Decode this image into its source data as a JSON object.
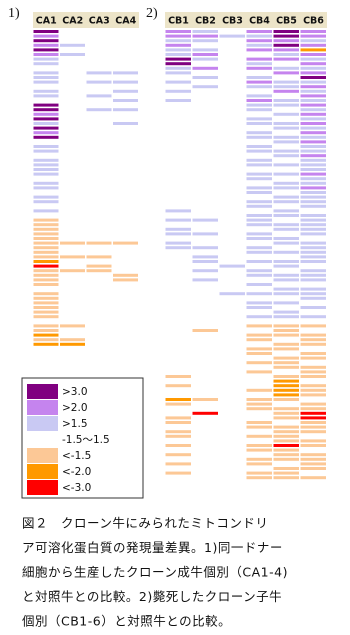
{
  "panels": [
    {
      "label": "1)",
      "columns": [
        "CA1",
        "CA2",
        "CA3",
        "CA4"
      ],
      "rows": [
        [
          0,
          3,
          3,
          3
        ],
        [
          1,
          3,
          3,
          3
        ],
        [
          0,
          3,
          3,
          3
        ],
        [
          1,
          2,
          3,
          3
        ],
        [
          0,
          3,
          3,
          3
        ],
        [
          1,
          2,
          3,
          3
        ],
        [
          2,
          3,
          3,
          3
        ],
        [
          2,
          3,
          3,
          3
        ],
        [
          3,
          3,
          3,
          3
        ],
        [
          2,
          3,
          2,
          2
        ],
        [
          2,
          3,
          3,
          3
        ],
        [
          2,
          3,
          2,
          2
        ],
        [
          3,
          3,
          3,
          3
        ],
        [
          2,
          3,
          3,
          2
        ],
        [
          2,
          3,
          2,
          3
        ],
        [
          3,
          3,
          3,
          2
        ],
        [
          0,
          3,
          3,
          3
        ],
        [
          0,
          3,
          2,
          2
        ],
        [
          1,
          3,
          3,
          3
        ],
        [
          0,
          3,
          3,
          3
        ],
        [
          2,
          3,
          3,
          2
        ],
        [
          0,
          3,
          3,
          3
        ],
        [
          1,
          3,
          3,
          3
        ],
        [
          0,
          3,
          3,
          3
        ],
        [
          3,
          3,
          3,
          3
        ],
        [
          2,
          3,
          3,
          3
        ],
        [
          2,
          3,
          3,
          3
        ],
        [
          3,
          3,
          3,
          3
        ],
        [
          2,
          3,
          3,
          3
        ],
        [
          2,
          3,
          3,
          3
        ],
        [
          2,
          3,
          3,
          3
        ],
        [
          2,
          3,
          3,
          3
        ],
        [
          3,
          3,
          3,
          3
        ],
        [
          2,
          3,
          3,
          3
        ],
        [
          2,
          3,
          3,
          3
        ],
        [
          3,
          3,
          3,
          3
        ],
        [
          2,
          3,
          3,
          3
        ],
        [
          2,
          3,
          3,
          3
        ],
        [
          3,
          3,
          3,
          3
        ],
        [
          2,
          3,
          3,
          3
        ],
        [
          3,
          3,
          3,
          3
        ],
        [
          4,
          3,
          3,
          3
        ],
        [
          4,
          3,
          3,
          3
        ],
        [
          4,
          3,
          3,
          3
        ],
        [
          4,
          3,
          3,
          3
        ],
        [
          4,
          3,
          3,
          3
        ],
        [
          4,
          4,
          4,
          4
        ],
        [
          4,
          3,
          3,
          3
        ],
        [
          4,
          3,
          3,
          3
        ],
        [
          4,
          4,
          4,
          3
        ],
        [
          5,
          3,
          3,
          3
        ],
        [
          6,
          3,
          4,
          3
        ],
        [
          4,
          4,
          4,
          3
        ],
        [
          4,
          3,
          3,
          4
        ],
        [
          4,
          3,
          3,
          4
        ],
        [
          4,
          3,
          3,
          3
        ],
        [
          3,
          3,
          3,
          3
        ],
        [
          4,
          3,
          3,
          3
        ],
        [
          4,
          3,
          3,
          3
        ],
        [
          4,
          3,
          3,
          3
        ],
        [
          4,
          3,
          3,
          3
        ],
        [
          4,
          3,
          3,
          3
        ],
        [
          4,
          3,
          3,
          3
        ],
        [
          3,
          3,
          3,
          3
        ],
        [
          4,
          4,
          3,
          3
        ],
        [
          4,
          3,
          3,
          3
        ],
        [
          5,
          3,
          3,
          3
        ],
        [
          4,
          4,
          3,
          3
        ],
        [
          5,
          5,
          3,
          3
        ]
      ]
    },
    {
      "label": "2)",
      "columns": [
        "CB1",
        "CB2",
        "CB3",
        "CB4",
        "CB5",
        "CB6"
      ],
      "rows": [
        [
          1,
          2,
          3,
          1,
          0,
          1
        ],
        [
          1,
          1,
          2,
          2,
          0,
          1
        ],
        [
          2,
          2,
          3,
          1,
          1,
          2
        ],
        [
          1,
          3,
          3,
          2,
          0,
          1
        ],
        [
          2,
          2,
          3,
          1,
          1,
          5
        ],
        [
          2,
          1,
          3,
          3,
          2,
          1
        ],
        [
          0,
          2,
          3,
          1,
          1,
          2
        ],
        [
          0,
          3,
          3,
          2,
          3,
          1
        ],
        [
          2,
          1,
          3,
          1,
          2,
          2
        ],
        [
          2,
          3,
          3,
          3,
          1,
          1
        ],
        [
          3,
          2,
          3,
          2,
          3,
          0
        ],
        [
          2,
          3,
          3,
          1,
          2,
          2
        ],
        [
          3,
          2,
          3,
          2,
          2,
          1
        ],
        [
          2,
          3,
          3,
          3,
          1,
          2
        ],
        [
          3,
          3,
          3,
          2,
          3,
          1
        ],
        [
          2,
          3,
          3,
          1,
          2,
          2
        ],
        [
          3,
          3,
          3,
          2,
          2,
          1
        ],
        [
          3,
          3,
          3,
          2,
          3,
          2
        ],
        [
          3,
          3,
          3,
          3,
          2,
          1
        ],
        [
          3,
          3,
          3,
          2,
          3,
          2
        ],
        [
          3,
          3,
          3,
          2,
          2,
          1
        ],
        [
          3,
          3,
          3,
          3,
          2,
          2
        ],
        [
          3,
          3,
          3,
          2,
          3,
          1
        ],
        [
          3,
          3,
          3,
          2,
          2,
          2
        ],
        [
          3,
          3,
          3,
          3,
          2,
          1
        ],
        [
          3,
          3,
          3,
          2,
          3,
          2
        ],
        [
          3,
          3,
          3,
          2,
          2,
          2
        ],
        [
          3,
          3,
          3,
          3,
          2,
          1
        ],
        [
          3,
          3,
          3,
          2,
          3,
          2
        ],
        [
          3,
          3,
          3,
          2,
          2,
          2
        ],
        [
          3,
          3,
          3,
          3,
          3,
          2
        ],
        [
          3,
          3,
          3,
          2,
          2,
          1
        ],
        [
          3,
          3,
          3,
          2,
          3,
          2
        ],
        [
          3,
          3,
          3,
          3,
          2,
          2
        ],
        [
          3,
          3,
          3,
          2,
          2,
          1
        ],
        [
          3,
          3,
          3,
          2,
          3,
          2
        ],
        [
          3,
          3,
          3,
          3,
          2,
          2
        ],
        [
          3,
          3,
          3,
          2,
          2,
          2
        ],
        [
          3,
          3,
          3,
          2,
          3,
          2
        ],
        [
          2,
          3,
          3,
          3,
          2,
          3
        ],
        [
          3,
          3,
          3,
          2,
          2,
          2
        ],
        [
          2,
          2,
          3,
          2,
          3,
          2
        ],
        [
          3,
          3,
          3,
          2,
          2,
          2
        ],
        [
          2,
          3,
          3,
          3,
          2,
          2
        ],
        [
          2,
          2,
          3,
          2,
          3,
          2
        ],
        [
          3,
          3,
          3,
          2,
          2,
          3
        ],
        [
          2,
          3,
          3,
          3,
          2,
          2
        ],
        [
          2,
          2,
          3,
          2,
          3,
          2
        ],
        [
          3,
          3,
          3,
          2,
          2,
          2
        ],
        [
          3,
          2,
          3,
          3,
          3,
          2
        ],
        [
          3,
          2,
          3,
          2,
          2,
          2
        ],
        [
          3,
          3,
          2,
          3,
          2,
          3
        ],
        [
          3,
          2,
          3,
          2,
          3,
          2
        ],
        [
          3,
          3,
          3,
          2,
          2,
          2
        ],
        [
          3,
          2,
          3,
          3,
          2,
          2
        ],
        [
          3,
          3,
          3,
          2,
          3,
          3
        ],
        [
          3,
          3,
          3,
          3,
          2,
          2
        ],
        [
          3,
          3,
          2,
          2,
          2,
          2
        ],
        [
          3,
          3,
          3,
          3,
          3,
          2
        ],
        [
          3,
          3,
          3,
          2,
          2,
          3
        ],
        [
          3,
          3,
          3,
          2,
          3,
          2
        ],
        [
          3,
          3,
          3,
          3,
          2,
          3
        ],
        [
          3,
          3,
          3,
          2,
          2,
          2
        ],
        [
          3,
          3,
          3,
          3,
          3,
          3
        ],
        [
          3,
          3,
          3,
          4,
          4,
          4
        ],
        [
          3,
          4,
          3,
          3,
          4,
          3
        ],
        [
          3,
          3,
          3,
          4,
          4,
          4
        ],
        [
          3,
          3,
          3,
          4,
          3,
          4
        ],
        [
          3,
          3,
          3,
          3,
          4,
          4
        ],
        [
          3,
          3,
          3,
          4,
          4,
          3
        ],
        [
          3,
          3,
          3,
          4,
          3,
          4
        ],
        [
          3,
          3,
          3,
          3,
          4,
          4
        ],
        [
          3,
          3,
          3,
          4,
          4,
          3
        ],
        [
          3,
          3,
          3,
          3,
          4,
          4
        ],
        [
          3,
          3,
          3,
          4,
          3,
          4
        ],
        [
          4,
          3,
          3,
          3,
          4,
          4
        ],
        [
          3,
          3,
          3,
          3,
          5,
          3
        ],
        [
          4,
          3,
          3,
          3,
          5,
          4
        ],
        [
          3,
          3,
          3,
          4,
          5,
          4
        ],
        [
          3,
          3,
          3,
          3,
          5,
          4
        ],
        [
          5,
          4,
          3,
          4,
          4,
          3
        ],
        [
          4,
          3,
          3,
          4,
          3,
          4
        ],
        [
          3,
          3,
          3,
          4,
          4,
          4
        ],
        [
          3,
          6,
          3,
          3,
          4,
          6
        ],
        [
          4,
          3,
          3,
          3,
          4,
          6
        ],
        [
          4,
          3,
          3,
          4,
          3,
          4
        ],
        [
          3,
          3,
          3,
          4,
          4,
          4
        ],
        [
          4,
          3,
          3,
          3,
          4,
          4
        ],
        [
          4,
          3,
          3,
          4,
          4,
          3
        ],
        [
          3,
          3,
          3,
          3,
          4,
          4
        ],
        [
          4,
          3,
          3,
          4,
          6,
          4
        ],
        [
          3,
          3,
          3,
          4,
          4,
          3
        ],
        [
          4,
          3,
          3,
          3,
          4,
          4
        ],
        [
          3,
          3,
          3,
          4,
          4,
          4
        ],
        [
          4,
          3,
          3,
          4,
          3,
          4
        ],
        [
          3,
          3,
          3,
          3,
          4,
          4
        ],
        [
          4,
          3,
          3,
          4,
          4,
          3
        ],
        [
          3,
          3,
          3,
          4,
          4,
          4
        ]
      ]
    }
  ],
  "legend": [
    {
      "label": ">3.0",
      "color": "#800080"
    },
    {
      "label": ">2.0",
      "color": "#c584ee"
    },
    {
      "label": ">1.5",
      "color": "#c9c9f3"
    },
    {
      "label": "-1.5～1.5",
      "color": "#ffffff"
    },
    {
      "label": "<-1.5",
      "color": "#fcc896"
    },
    {
      "label": "<-2.0",
      "color": "#ff9900"
    },
    {
      "label": "<-3.0",
      "color": "#ff0000"
    }
  ],
  "caption": [
    "図２　クローン牛にみられたミトコンドリ",
    "ア可溶化蛋白質の発現量差異。1)同一ドナー",
    "細胞から生産したクローン成牛個別（CA1-4)",
    "と対照牛との比較。2)斃死したクローン子牛",
    "個別（CB1-6）と対照牛との比較。"
  ]
}
